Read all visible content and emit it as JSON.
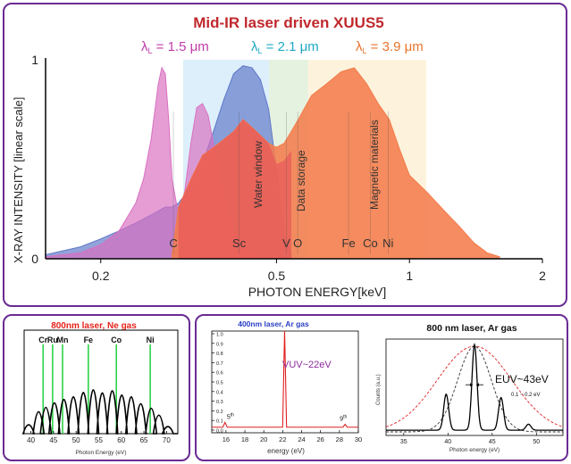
{
  "colors": {
    "frame": "#6a2b93",
    "title": "#c0282d",
    "lambda_1_5": "#c03ca8",
    "lambda_2_1": "#1fa9c5",
    "lambda_3_9": "#e8742c",
    "spec_1_5": "#d96fc0",
    "spec_2_1": "#5f78c8",
    "spec_3_9": "#f47c4c",
    "red_fill": "#e85a5a",
    "ne_title": "#e8231c",
    "ar400_title": "#2a3ec4",
    "vuv_text": "#8d2b9c",
    "green_line": "#2fd24a"
  },
  "chart_data": [
    {
      "type": "area",
      "title": "Mid-IR laser driven XUUS5",
      "xlabel": "PHOTON ENERGY[keV]",
      "ylabel": "X-RAY INTENSITY [linear scale]",
      "x_scale": "log",
      "xlim": [
        0.15,
        2.0
      ],
      "ylim": [
        0,
        1
      ],
      "x_ticks": [
        0.2,
        0.5,
        1,
        2
      ],
      "x_tick_labels": [
        "0.2",
        "0.5",
        "1",
        "2"
      ],
      "y_ticks": [
        0,
        1
      ],
      "y_tick_labels": [
        "0",
        "1"
      ],
      "grid": false,
      "series": [
        {
          "name": "λL = 1.5 μm",
          "legend_parts": [
            "λ",
            "L",
            " = 1.5 ",
            "μm"
          ],
          "x": [
            0.15,
            0.18,
            0.2,
            0.22,
            0.24,
            0.25,
            0.26,
            0.27,
            0.275,
            0.28,
            0.285,
            0.29,
            0.3,
            0.31,
            0.32,
            0.33,
            0.34,
            0.35,
            0.36,
            0.37,
            0.38,
            0.39,
            0.4,
            0.42,
            0.44,
            0.46
          ],
          "values": [
            0.01,
            0.03,
            0.07,
            0.14,
            0.28,
            0.4,
            0.6,
            0.88,
            0.96,
            0.93,
            0.7,
            0.4,
            0.22,
            0.34,
            0.58,
            0.76,
            0.78,
            0.72,
            0.58,
            0.45,
            0.32,
            0.22,
            0.14,
            0.06,
            0.02,
            0.0
          ]
        },
        {
          "name": "λL = 2.1 μm",
          "legend_parts": [
            "λ",
            "L",
            " = 2.1 ",
            "μm"
          ],
          "x": [
            0.15,
            0.18,
            0.2,
            0.22,
            0.24,
            0.26,
            0.28,
            0.29,
            0.3,
            0.32,
            0.34,
            0.36,
            0.38,
            0.4,
            0.42,
            0.44,
            0.46,
            0.48,
            0.5,
            0.52,
            0.54
          ],
          "values": [
            0.02,
            0.06,
            0.1,
            0.14,
            0.18,
            0.22,
            0.26,
            0.26,
            0.28,
            0.36,
            0.48,
            0.64,
            0.8,
            0.93,
            0.97,
            0.96,
            0.9,
            0.75,
            0.45,
            0.12,
            0.02
          ]
        },
        {
          "name": "λL = 3.9 μm",
          "legend_parts": [
            "λ",
            "L",
            " = 3.9 ",
            "μm"
          ],
          "x": [
            0.29,
            0.3,
            0.32,
            0.34,
            0.36,
            0.38,
            0.4,
            0.42,
            0.44,
            0.46,
            0.48,
            0.5,
            0.52,
            0.54,
            0.56,
            0.6,
            0.65,
            0.7,
            0.75,
            0.8,
            0.85,
            0.9,
            0.95,
            1.0,
            1.1,
            1.2,
            1.3,
            1.4,
            1.5,
            1.6
          ],
          "values": [
            0.02,
            0.26,
            0.4,
            0.52,
            0.56,
            0.6,
            0.64,
            0.7,
            0.66,
            0.62,
            0.58,
            0.56,
            0.58,
            0.64,
            0.7,
            0.82,
            0.88,
            0.94,
            0.96,
            0.88,
            0.78,
            0.7,
            0.55,
            0.42,
            0.33,
            0.24,
            0.16,
            0.08,
            0.03,
            0.01
          ]
        }
      ],
      "annotations": {
        "shaded_bands": [
          "Water window",
          "Data storage",
          "Magnetic materials"
        ],
        "edges": [
          {
            "label": "C",
            "x": 0.284
          },
          {
            "label": "Sc",
            "x": 0.4
          },
          {
            "label": "V",
            "x": 0.512
          },
          {
            "label": "O",
            "x": 0.543
          },
          {
            "label": "Fe",
            "x": 0.708
          },
          {
            "label": "Co",
            "x": 0.793
          },
          {
            "label": "Ni",
            "x": 0.87
          }
        ]
      }
    },
    {
      "type": "line",
      "title": "800nm laser, Ne gas",
      "xlabel": "Photon Energy (eV)",
      "xlim": [
        38.5,
        72.5
      ],
      "x_ticks": [
        40,
        45,
        50,
        55,
        60,
        65,
        70
      ],
      "x_tick_labels": [
        "40",
        "45",
        "50",
        "55",
        "60",
        "65",
        "70"
      ],
      "peaks": [
        {
          "x": 39.5,
          "height": 0.12
        },
        {
          "x": 41.7,
          "height": 0.42
        },
        {
          "x": 43.3,
          "height": 0.52
        },
        {
          "x": 45.2,
          "height": 0.62
        },
        {
          "x": 47.3,
          "height": 0.7
        },
        {
          "x": 49.4,
          "height": 0.76
        },
        {
          "x": 51.6,
          "height": 0.86
        },
        {
          "x": 53.8,
          "height": 0.92
        },
        {
          "x": 55.8,
          "height": 0.85
        },
        {
          "x": 58.0,
          "height": 0.9
        },
        {
          "x": 60.1,
          "height": 0.8
        },
        {
          "x": 62.2,
          "height": 0.76
        },
        {
          "x": 64.3,
          "height": 0.6
        },
        {
          "x": 66.6,
          "height": 0.5
        },
        {
          "x": 68.3,
          "height": 0.34
        },
        {
          "x": 70.3,
          "height": 0.08
        }
      ],
      "element_markers": [
        {
          "label": "Cr",
          "x": 42.7
        },
        {
          "label": "Ru",
          "x": 44.8
        },
        {
          "label": "Mn",
          "x": 47.0
        },
        {
          "label": "Fe",
          "x": 52.7
        },
        {
          "label": "Co",
          "x": 58.9
        },
        {
          "label": "Ni",
          "x": 66.4
        }
      ]
    },
    {
      "type": "line",
      "title": "400nm laser, Ar gas",
      "xlabel": "energy (eV)",
      "xlim": [
        14.5,
        30
      ],
      "ylim": [
        0,
        1.0
      ],
      "x_ticks": [
        16,
        18,
        20,
        22,
        24,
        26,
        28,
        30
      ],
      "x_tick_labels": [
        "16",
        "18",
        "20",
        "22",
        "24",
        "26",
        "28",
        "30"
      ],
      "y_ticks": [
        0.0,
        0.1,
        0.2,
        0.3,
        0.4,
        0.5,
        0.6,
        0.7,
        0.8,
        0.9,
        1.0
      ],
      "y_tick_labels": [
        "0.0",
        "0.1",
        "0.2",
        "0.3",
        "0.4",
        "0.5",
        "0.6",
        "0.7",
        "0.8",
        "0.9",
        "1.0"
      ],
      "peaks": [
        {
          "x": 15.9,
          "height": 0.05,
          "label_main": "5",
          "label_sup": "th"
        },
        {
          "x": 22.2,
          "height": 1.0
        },
        {
          "x": 28.6,
          "height": 0.03,
          "label_main": "9",
          "label_sup": "th"
        }
      ],
      "annotation": "VUV~22eV"
    },
    {
      "type": "line",
      "title": "800 nm laser, Ar gas",
      "xlabel": "Photon energy (eV)",
      "ylabel": "Counts (a.u.)",
      "xlim": [
        33,
        53
      ],
      "x_ticks": [
        35,
        40,
        45,
        50
      ],
      "x_tick_labels": [
        "35",
        "40",
        "45",
        "50"
      ],
      "peaks": [
        {
          "x": 39.8,
          "height": 0.42
        },
        {
          "x": 43.0,
          "height": 1.0
        },
        {
          "x": 46.0,
          "height": 0.38
        },
        {
          "x": 49.1,
          "height": 0.07
        }
      ],
      "envelopes": [
        {
          "name": "red dashed",
          "center": 43.0,
          "width": 4.2
        },
        {
          "name": "black dashed",
          "center": 43.0,
          "width": 1.9
        }
      ],
      "annotation_main": "EUV~43eV",
      "annotation_width": "0.1 ~ 0.2 eV"
    }
  ]
}
